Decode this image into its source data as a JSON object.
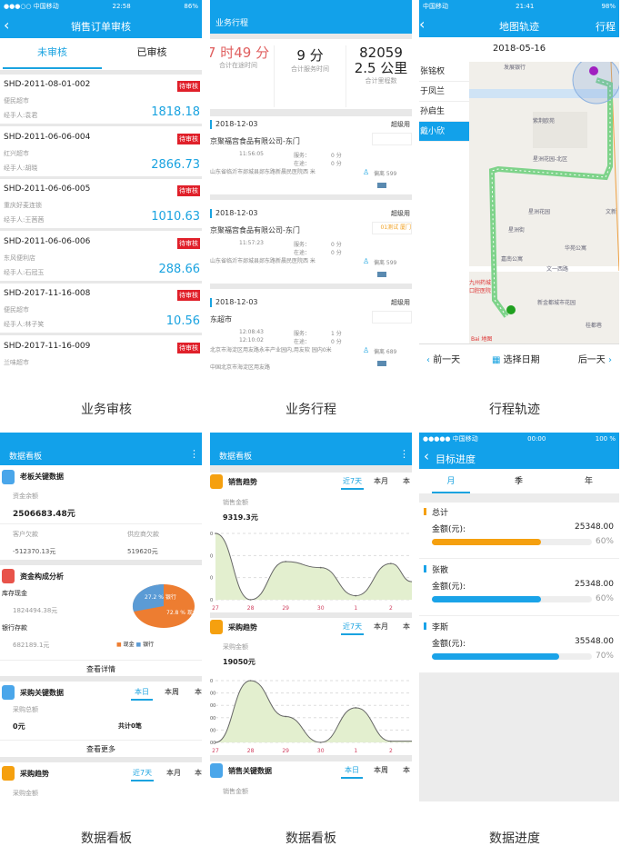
{
  "captions": [
    "业务审核",
    "业务行程",
    "行程轨迹",
    "数据看板",
    "数据看板",
    "数据进度"
  ],
  "colors": {
    "brand": "#12a1ea",
    "badge": "#e0202a",
    "orange": "#f5a00f",
    "pie_cash": "#ed7d31",
    "pie_bank": "#5b9bd5",
    "chart_fill": "#e3efcf"
  },
  "screen1": {
    "status": {
      "carrier": "●●●○○ 中国移动",
      "time": "22:58",
      "battery": "86%"
    },
    "title": "销售订单审核",
    "tabs": [
      "未审核",
      "已审核"
    ],
    "orders": [
      {
        "id": "SHD-2011-08-01-002",
        "store": "便民超市",
        "handler": "经手人:袁君",
        "amount": "1818.18",
        "badge": "待审核"
      },
      {
        "id": "SHD-2011-06-06-004",
        "store": "红兴超市",
        "handler": "经手人:胡晓",
        "amount": "2866.73",
        "badge": "待审核"
      },
      {
        "id": "SHD-2011-06-06-005",
        "store": "重庆好麦连锁",
        "handler": "经手人:王茜茜",
        "amount": "1010.63",
        "badge": "待审核"
      },
      {
        "id": "SHD-2011-06-06-006",
        "store": "东风便利店",
        "handler": "经手人:石冠玉",
        "amount": "288.66",
        "badge": "待审核"
      },
      {
        "id": "SHD-2017-11-16-008",
        "store": "便民超市",
        "handler": "经手人:林子笑",
        "amount": "10.56",
        "badge": "待审核"
      },
      {
        "id": "SHD-2017-11-16-009",
        "store": "兰味超市",
        "handler": "",
        "amount": "",
        "badge": "待审核"
      }
    ]
  },
  "screen2": {
    "title": "业务行程",
    "stats": [
      {
        "value": "7 时49 分",
        "label": "合计在途时间"
      },
      {
        "value": "9 分",
        "label": "合计服务时间"
      },
      {
        "value": "82059 2.5 公里",
        "label": "合计里程数"
      }
    ],
    "trips": [
      {
        "date": "2018-12-03",
        "user": "超级用",
        "company": "京聚福宫食品有限公司-东门",
        "tag": "",
        "time1": "11:56:05",
        "time2": "",
        "service_label": "服务：",
        "service": "0 分",
        "transit_label": "在途：",
        "transit": "0 分",
        "address": "山东省临沂市郯城县郯东路新晨民医院西 米",
        "address2": "",
        "dist": "偏离 599"
      },
      {
        "date": "2018-12-03",
        "user": "超级用",
        "company": "京聚福宫食品有限公司-东门",
        "tag": "01测试 厦门",
        "time1": "11:57:23",
        "time2": "",
        "service_label": "服务：",
        "service": "0 分",
        "transit_label": "在途：",
        "transit": "0 分",
        "address": "山东省临沂市郯城县郯东路新晨民医院西 米",
        "address2": "",
        "dist": "偏离 599"
      },
      {
        "date": "2018-12-03",
        "user": "超级用",
        "company": "东超市",
        "tag": "",
        "time1": "12:08:43",
        "time2": "12:10:02",
        "service_label": "服务：",
        "service": "1 分",
        "transit_label": "在途：",
        "transit": "0 分",
        "address": "北京市海淀区用友路永丰产业园内,用友软 园内0米",
        "address2": "中国北京市海淀区用友路",
        "dist": "偏离 689"
      }
    ]
  },
  "screen3": {
    "status": {
      "carrier": "中国移动",
      "time": "21:41",
      "battery": "98%"
    },
    "title": "地图轨迹",
    "right_action": "行程",
    "date": "2018-05-16",
    "people": [
      "张铭权",
      "于凤兰",
      "孙启生",
      "戴小欣"
    ],
    "selected_person": 3,
    "map_labels": [
      "发展银行",
      "紫荆欧苑",
      "星洲花园-北区",
      "星洲花园",
      "星洲街",
      "嘉南公寓",
      "华苑公寓",
      "文一西路",
      "新金都城市花园",
      "桂都巷",
      "文新",
      "九州药城 口腔医院",
      "Bai 地图"
    ],
    "prev": "前一天",
    "pick": "选择日期",
    "next": "后一天"
  },
  "screen4": {
    "title": "数据看板",
    "boss": {
      "title": "老板关键数据",
      "balance_label": "资金余额",
      "balance": "2506683.48元",
      "recv_label": "客户欠款",
      "recv": "-512370.13元",
      "pay_label": "供应商欠款",
      "pay": "519620元"
    },
    "funds": {
      "title": "资金构成分析",
      "cash_label": "库存现金",
      "cash": "1824494.38元",
      "bank_label": "银行存款",
      "bank": "682189.1元",
      "pie": [
        {
          "label": "现金",
          "percent": 72.8,
          "text": "72.8 % 现金"
        },
        {
          "label": "银行",
          "percent": 27.2,
          "text": "27.2 % 银行"
        }
      ],
      "details": "查看详情"
    },
    "purchase": {
      "title": "采购关键数据",
      "tabs": [
        "本日",
        "本周",
        "本"
      ],
      "total_label": "采购总额",
      "total": "0元",
      "count": "共计0笔",
      "more": "查看更多"
    },
    "trend": {
      "title": "采购趋势",
      "tabs": [
        "近7天",
        "本月",
        "本"
      ],
      "label": "采购金额"
    }
  },
  "screen5": {
    "title": "数据看板",
    "sales": {
      "title": "销售趋势",
      "tabs": [
        "近7天",
        "本月",
        "本"
      ],
      "label": "销售金额",
      "value": "9319.3元"
    },
    "purchase": {
      "title": "采购趋势",
      "tabs": [
        "近7天",
        "本月",
        "本"
      ],
      "label": "采购金额",
      "value": "19050元"
    },
    "sales_key": {
      "title": "销售关键数据",
      "tabs": [
        "本日",
        "本周",
        "本"
      ],
      "label": "销售金额"
    }
  },
  "chart_data": [
    {
      "type": "area",
      "categories": [
        "27",
        "28",
        "29",
        "30",
        "1",
        "2"
      ],
      "values": [
        3.3,
        0,
        1.9,
        1.6,
        0.2,
        1.8
      ],
      "trailing": 0.9,
      "ylim": [
        0,
        3.3
      ],
      "ytick_labels": [
        "0",
        "0",
        "0",
        "0"
      ],
      "grid": true
    },
    {
      "type": "area",
      "categories": [
        "27",
        "28",
        "29",
        "30",
        "1",
        "2"
      ],
      "values": [
        0,
        5,
        2.1,
        0,
        2.8,
        0.1
      ],
      "trailing": 0.1,
      "ylim": [
        0,
        5
      ],
      "ytick_labels": [
        "00",
        "00",
        "00",
        "00",
        "00",
        "0"
      ],
      "grid": true
    }
  ],
  "screen6": {
    "status": {
      "carrier": "●●●●● 中国移动",
      "time": "00:00",
      "battery": "100 %"
    },
    "title": "目标进度",
    "tabs": [
      "月",
      "季",
      "年"
    ],
    "items": [
      {
        "name": "总计",
        "label": "金额(元):",
        "amount": "25348.00",
        "percent": 60,
        "percent_text": "60%",
        "color": "#f5a00f"
      },
      {
        "name": "张散",
        "label": "金额(元):",
        "amount": "25348.00",
        "percent": 60,
        "percent_text": "60%",
        "color": "#1aa3e8"
      },
      {
        "name": "李斯",
        "label": "金额(元):",
        "amount": "35548.00",
        "percent": 70,
        "percent_text": "70%",
        "color": "#1aa3e8"
      }
    ]
  }
}
